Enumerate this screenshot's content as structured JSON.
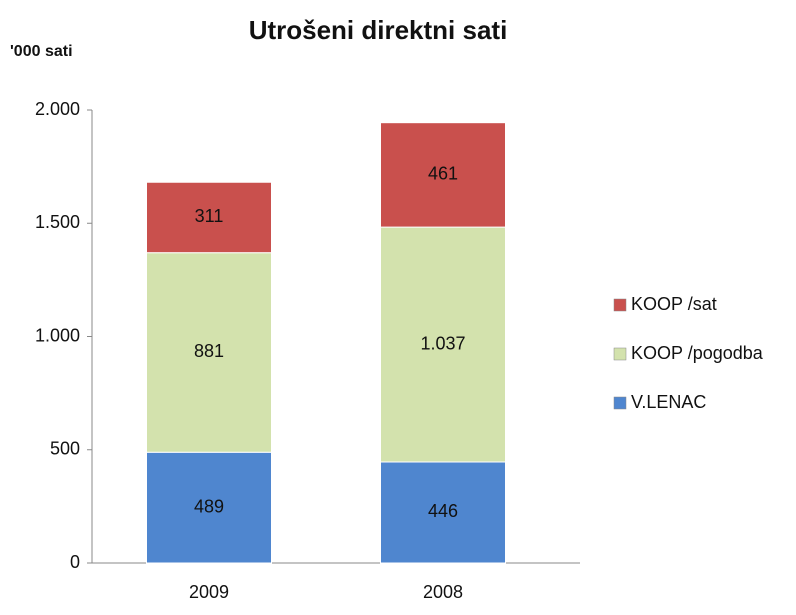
{
  "chart_data": {
    "type": "stacked_bar",
    "title": "Utrošeni  direktni sati",
    "y_label": "'000 sati",
    "categories": [
      "2009",
      "2008"
    ],
    "series": [
      {
        "name": "V.LENAC",
        "color": "#4f86cf",
        "values": [
          489,
          446
        ]
      },
      {
        "name": "KOOP /pogodba",
        "color": "#d3e2ad",
        "values": [
          881,
          1037
        ],
        "value_labels": [
          "881",
          "1.037"
        ]
      },
      {
        "name": "KOOP /sat",
        "color": "#c9504d",
        "values": [
          311,
          461
        ]
      }
    ],
    "ylim": [
      0,
      2000
    ],
    "yticks": [
      0,
      500,
      {
        "value": 1000,
        "label": "1.000"
      },
      {
        "value": 1500,
        "label": "1.500"
      },
      {
        "value": 2000,
        "label": "2.000"
      }
    ],
    "legend": "right"
  }
}
